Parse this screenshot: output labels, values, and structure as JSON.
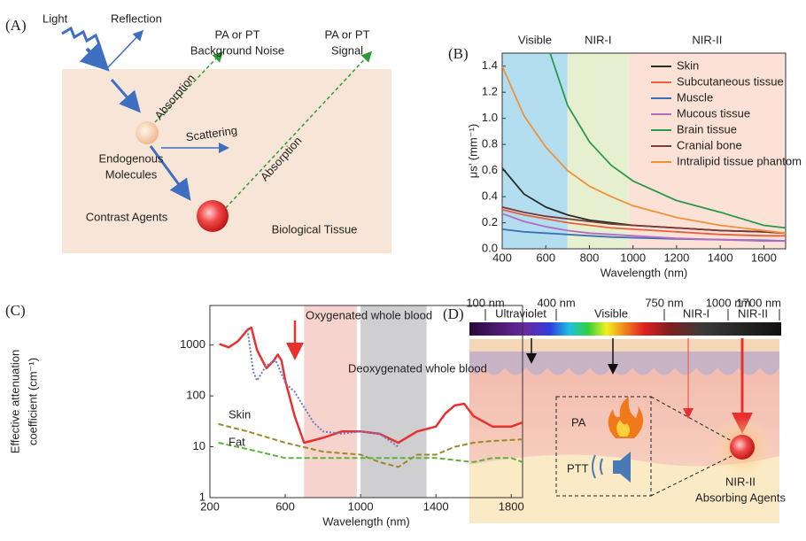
{
  "panel_a": {
    "label": "(A)",
    "light": "Light",
    "reflection": "Reflection",
    "noise": [
      "PA or PT",
      "Background Noise"
    ],
    "signal": [
      "PA or PT",
      "Signal"
    ],
    "absorption_1": "Absorption",
    "endogenous": [
      "Endogenous",
      "Molecules"
    ],
    "scattering": "Scattering",
    "absorption_2": "Absorption",
    "contrast_agents": "Contrast Agents",
    "tissue": "Biological Tissue"
  },
  "chart_data": [
    {
      "type": "line",
      "panel_label": "(B)",
      "x_label": "Wavelength (nm)",
      "y_label": [
        "μs’ (mm⁻¹)"
      ],
      "x": [
        400,
        500,
        600,
        700,
        800,
        900,
        1000,
        1200,
        1400,
        1600,
        1700
      ],
      "series": [
        {
          "name": "Skin",
          "color": "#2b2b2b",
          "values": [
            0.62,
            0.42,
            0.32,
            0.26,
            0.22,
            0.2,
            0.18,
            0.16,
            0.14,
            0.13,
            0.12
          ]
        },
        {
          "name": "Subcutaneous tissue",
          "color": "#e8603c",
          "values": [
            0.3,
            0.26,
            0.23,
            0.2,
            0.18,
            0.16,
            0.15,
            0.13,
            0.11,
            0.1,
            0.1
          ]
        },
        {
          "name": "Muscle",
          "color": "#3b6fb6",
          "values": [
            0.15,
            0.13,
            0.12,
            0.11,
            0.1,
            0.09,
            0.085,
            0.075,
            0.07,
            0.065,
            0.06
          ]
        },
        {
          "name": "Mucous tissue",
          "color": "#b46bc2",
          "values": [
            0.27,
            0.21,
            0.17,
            0.14,
            0.12,
            0.11,
            0.1,
            0.08,
            0.07,
            0.06,
            0.06
          ]
        },
        {
          "name": "Brain tissue",
          "color": "#2a9a4a",
          "values": [
            null,
            null,
            1.6,
            1.1,
            0.82,
            0.64,
            0.52,
            0.37,
            0.28,
            0.18,
            0.16
          ]
        },
        {
          "name": "Cranial bone",
          "color": "#7b3b3b",
          "values": [
            0.32,
            0.28,
            0.25,
            0.23,
            0.21,
            0.19,
            0.18,
            0.16,
            0.14,
            0.13,
            0.12
          ]
        },
        {
          "name": "Intralipid tissue phantom",
          "color": "#f0923a",
          "values": [
            1.4,
            1.02,
            0.78,
            0.6,
            0.48,
            0.4,
            0.33,
            0.24,
            0.18,
            0.14,
            0.12
          ]
        }
      ],
      "regions": [
        {
          "name": "Visible",
          "range": [
            400,
            700
          ],
          "color": "#b3def0"
        },
        {
          "name": "NIR-I",
          "range": [
            700,
            980
          ],
          "color": "#e6efcf"
        },
        {
          "name": "NIR-II",
          "range": [
            980,
            1700
          ],
          "color": "#fbe1d6"
        }
      ],
      "xlim": [
        400,
        1700
      ],
      "xticks": [
        400,
        600,
        800,
        1000,
        1200,
        1400,
        1600
      ],
      "ylim": [
        0,
        1.5
      ],
      "yticks": [
        {
          "value": 0,
          "label": "0.0"
        },
        0.2,
        0.4,
        0.6,
        0.8,
        {
          "value": 1,
          "label": "1.0"
        },
        1.2,
        1.4
      ],
      "log": false,
      "legend": "upper right"
    },
    {
      "type": "line",
      "panel_label": "(C)",
      "x_label": "Wavelength (nm)",
      "y_label": [
        "Effective attenuation",
        "coefficient (cm⁻¹)"
      ],
      "series": [
        {
          "name": "Oxygenated whole blood",
          "color": "#e8312f",
          "dash": "solid",
          "x": [
            250,
            300,
            350,
            400,
            420,
            450,
            500,
            540,
            560,
            580,
            600,
            650,
            700,
            800,
            900,
            1000,
            1100,
            1200,
            1300,
            1400,
            1450,
            1500,
            1550,
            1600,
            1700,
            1800,
            1860
          ],
          "values": [
            1050,
            900,
            1200,
            2000,
            2200,
            800,
            350,
            500,
            650,
            500,
            200,
            40,
            12,
            15,
            20,
            20,
            18,
            12,
            20,
            25,
            45,
            65,
            70,
            40,
            25,
            25,
            30
          ]
        },
        {
          "name": "Deoxygenated whole blood",
          "color": "#6f78c8",
          "dash": "dotted",
          "x": [
            400,
            430,
            450,
            500,
            550,
            600,
            650,
            700,
            750,
            800,
            900,
            1000,
            1100,
            1200
          ],
          "values": [
            2000,
            300,
            200,
            400,
            500,
            180,
            120,
            60,
            30,
            20,
            18,
            20,
            18,
            10
          ]
        },
        {
          "name": "Skin",
          "color": "#9a8a2a",
          "dash": "dashed",
          "x": [
            245,
            400,
            600,
            800,
            1000,
            1100,
            1200,
            1300,
            1400,
            1500,
            1600,
            1700,
            1860
          ],
          "values": [
            28,
            20,
            12,
            8,
            7,
            5,
            4,
            7,
            7,
            10,
            12,
            13,
            14
          ]
        },
        {
          "name": "Fat",
          "color": "#5ab53a",
          "dash": "dashed",
          "x": [
            245,
            400,
            600,
            800,
            1000,
            1200,
            1400,
            1600,
            1700,
            1800,
            1860
          ],
          "values": [
            12,
            9,
            6,
            6,
            6,
            6,
            6,
            5,
            6,
            6,
            5
          ]
        }
      ],
      "regions": [
        {
          "range": [
            700,
            980
          ],
          "color": "#f6d3cd"
        },
        {
          "range": [
            1000,
            1350
          ],
          "color": "#cfcfd2"
        }
      ],
      "xlim": [
        200,
        1860
      ],
      "xticks": [
        200,
        600,
        1000,
        1400,
        1800
      ],
      "ylim": [
        1,
        6000
      ],
      "yticks": [
        1,
        10,
        100,
        1000
      ],
      "log": true,
      "legend": false
    }
  ],
  "panel_d": {
    "label": "(D)",
    "ticks": [
      "100 nm",
      "400 nm",
      "750 nm",
      "1000 nm",
      "1700 nm"
    ],
    "bands": [
      "Ultraviolet",
      "Visible",
      "NIR-I",
      "NIR-II"
    ],
    "pa": "PA",
    "ptt": "PTT",
    "agents": [
      "NIR-II",
      "Absorbing Agents"
    ]
  }
}
